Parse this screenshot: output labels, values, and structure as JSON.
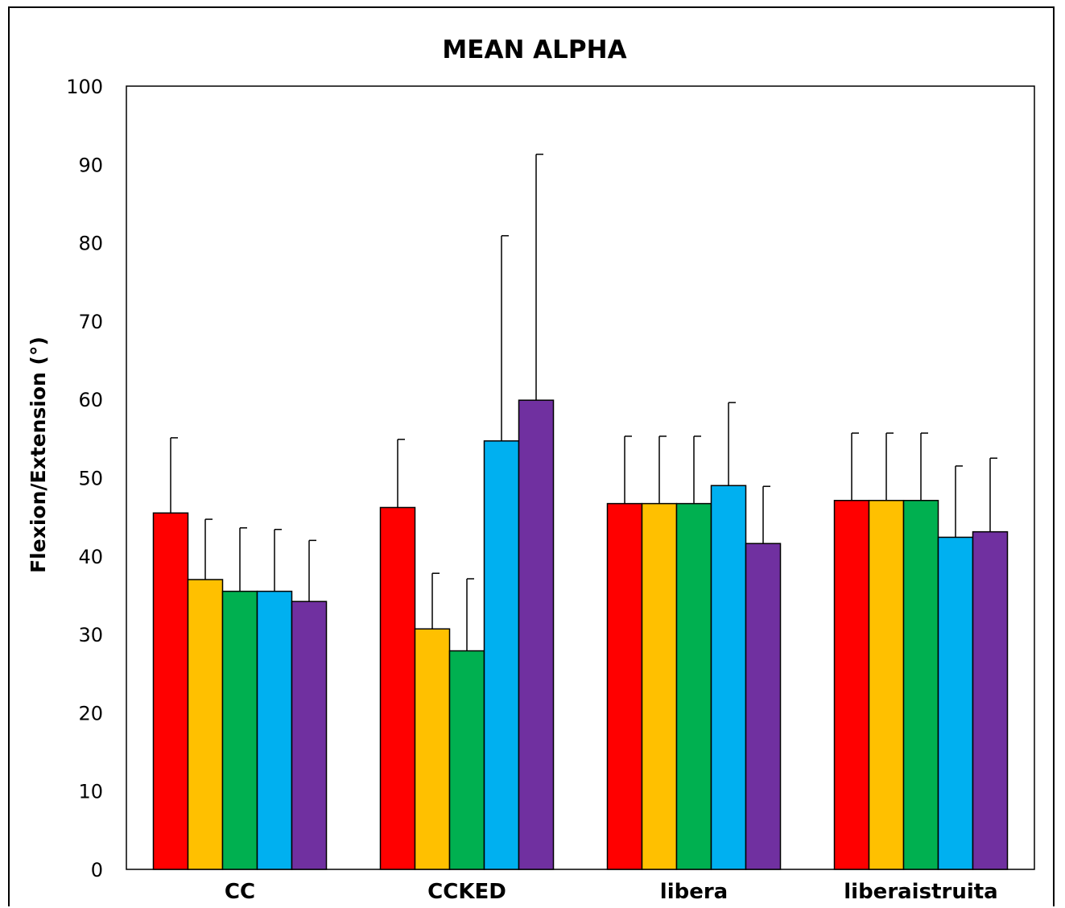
{
  "chart_data": {
    "type": "bar",
    "title": "MEAN ALPHA",
    "xlabel": "",
    "ylabel": "Flexion/Extension (°)",
    "ylim": [
      0,
      100
    ],
    "yticks": [
      0,
      10,
      20,
      30,
      40,
      50,
      60,
      70,
      80,
      90,
      100
    ],
    "grid": false,
    "legend": "none",
    "categories": [
      "CC",
      "CCKED",
      "libera",
      "liberaistruita"
    ],
    "colors": [
      "#ff0000",
      "#ffc000",
      "#00b050",
      "#00b0f0",
      "#7030a0"
    ],
    "series": [
      {
        "values": [
          45.5,
          46.2,
          46.7,
          47.1
        ],
        "errors": [
          9.6,
          8.7,
          8.6,
          8.6
        ]
      },
      {
        "values": [
          37.0,
          30.7,
          46.7,
          47.1
        ],
        "errors": [
          7.7,
          7.1,
          8.6,
          8.6
        ]
      },
      {
        "values": [
          35.5,
          27.9,
          46.7,
          47.1
        ],
        "errors": [
          8.1,
          9.2,
          8.6,
          8.6
        ]
      },
      {
        "values": [
          35.5,
          54.7,
          49.0,
          42.4
        ],
        "errors": [
          7.9,
          26.2,
          10.6,
          9.1
        ]
      },
      {
        "values": [
          34.2,
          59.9,
          41.6,
          43.1
        ],
        "errors": [
          7.8,
          31.4,
          7.3,
          9.4
        ]
      }
    ]
  }
}
